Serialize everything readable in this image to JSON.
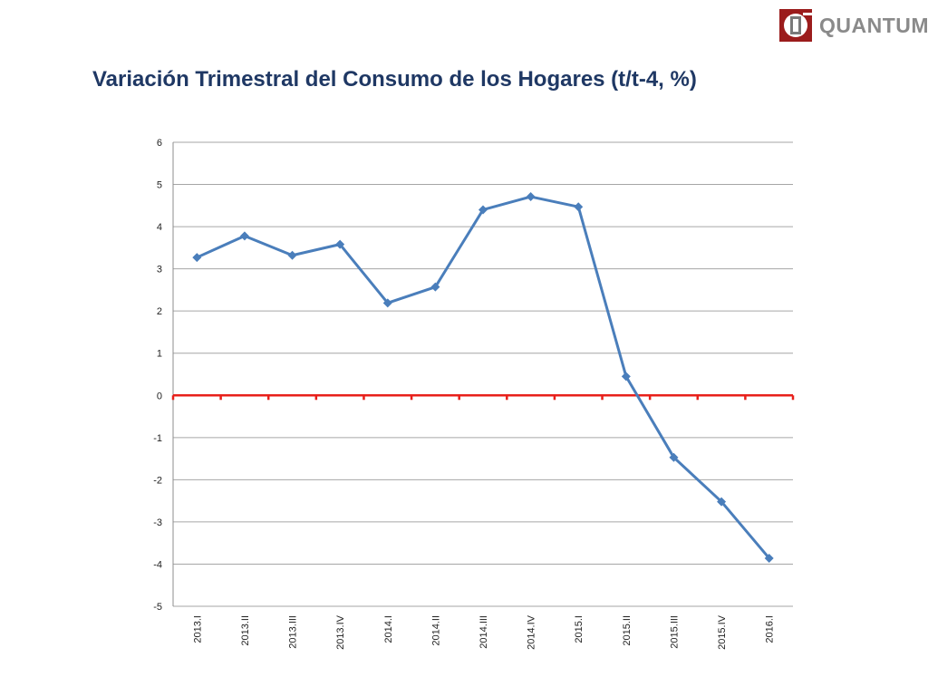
{
  "header": {
    "logo_text": "QUANTUM",
    "title": "Variación Trimestral del Consumo de los Hogares (t/t-4, %)"
  },
  "chart_data": {
    "type": "line",
    "title": "Variación Trimestral del Consumo de los Hogares (t/t-4, %)",
    "xlabel": "",
    "ylabel": "",
    "categories": [
      "2013.I",
      "2013.II",
      "2013.III",
      "2013.IV",
      "2014.I",
      "2014.II",
      "2014.III",
      "2014.IV",
      "2015.I",
      "2015.II",
      "2015.III",
      "2015.IV",
      "2016.I"
    ],
    "series": [
      {
        "values": [
          3.27,
          3.78,
          3.32,
          3.58,
          2.19,
          2.57,
          4.4,
          4.71,
          4.47,
          0.45,
          -1.47,
          -2.52,
          -3.86
        ],
        "color": "#4a7ebb"
      }
    ],
    "reference_line": {
      "y": 0,
      "color": "#e8201b"
    },
    "ylim": [
      -5,
      6
    ],
    "yticks": [
      "6",
      "5",
      "4",
      "3",
      "2",
      "1",
      "0",
      "-1",
      "-2",
      "-3",
      "-4",
      "-5"
    ],
    "grid": true,
    "legend": "none"
  }
}
